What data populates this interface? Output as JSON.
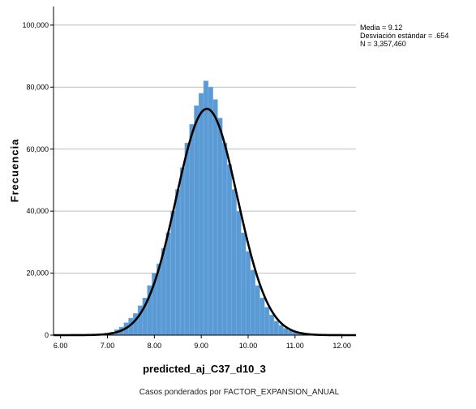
{
  "chart_data": {
    "type": "bar",
    "subtype": "histogram-with-normal-curve",
    "xlabel": "predicted_aj_C37_d10_3",
    "ylabel": "Frecuencia",
    "footnote": "Casos ponderados por FACTOR_EXPANSION_ANUAL",
    "x_ticks": [
      "6.00",
      "7.00",
      "8.00",
      "9.00",
      "10.00",
      "11.00",
      "12.00"
    ],
    "y_ticks": [
      "0",
      "20,000",
      "40,000",
      "60,000",
      "80,000",
      "100,000"
    ],
    "xlim": [
      5.85,
      12.3
    ],
    "ylim": [
      0,
      106000
    ],
    "grid": "horizontal",
    "bar_color": "#5b9bd5",
    "curve_color": "#000000",
    "stats": {
      "mean_text": "Media = 9.12",
      "sd_text": "Desviación estándar = .654",
      "n_text": "N = 3,357,460"
    },
    "mean": 9.12,
    "std": 0.654,
    "n": 3357460,
    "bins": [
      {
        "x": 7.0,
        "count": 500
      },
      {
        "x": 7.1,
        "count": 1000
      },
      {
        "x": 7.2,
        "count": 1800
      },
      {
        "x": 7.3,
        "count": 2600
      },
      {
        "x": 7.4,
        "count": 4000
      },
      {
        "x": 7.5,
        "count": 5500
      },
      {
        "x": 7.6,
        "count": 7000
      },
      {
        "x": 7.7,
        "count": 9500
      },
      {
        "x": 7.8,
        "count": 12000
      },
      {
        "x": 7.9,
        "count": 16000
      },
      {
        "x": 8.0,
        "count": 20000
      },
      {
        "x": 8.1,
        "count": 23000
      },
      {
        "x": 8.2,
        "count": 28000
      },
      {
        "x": 8.3,
        "count": 33000
      },
      {
        "x": 8.4,
        "count": 40000
      },
      {
        "x": 8.5,
        "count": 47000
      },
      {
        "x": 8.6,
        "count": 54000
      },
      {
        "x": 8.7,
        "count": 62000
      },
      {
        "x": 8.8,
        "count": 68000
      },
      {
        "x": 8.9,
        "count": 74000
      },
      {
        "x": 9.0,
        "count": 78000
      },
      {
        "x": 9.1,
        "count": 82000
      },
      {
        "x": 9.2,
        "count": 80000
      },
      {
        "x": 9.3,
        "count": 76000
      },
      {
        "x": 9.4,
        "count": 70000
      },
      {
        "x": 9.5,
        "count": 62000
      },
      {
        "x": 9.6,
        "count": 55000
      },
      {
        "x": 9.7,
        "count": 47000
      },
      {
        "x": 9.8,
        "count": 40000
      },
      {
        "x": 9.9,
        "count": 33000
      },
      {
        "x": 10.0,
        "count": 27000
      },
      {
        "x": 10.1,
        "count": 21000
      },
      {
        "x": 10.2,
        "count": 16000
      },
      {
        "x": 10.3,
        "count": 12000
      },
      {
        "x": 10.4,
        "count": 9000
      },
      {
        "x": 10.5,
        "count": 6500
      },
      {
        "x": 10.6,
        "count": 4500
      },
      {
        "x": 10.7,
        "count": 3200
      },
      {
        "x": 10.8,
        "count": 2200
      },
      {
        "x": 10.9,
        "count": 1500
      },
      {
        "x": 11.0,
        "count": 1000
      },
      {
        "x": 11.1,
        "count": 600
      },
      {
        "x": 11.2,
        "count": 300
      }
    ],
    "curve_peak": 73000
  }
}
